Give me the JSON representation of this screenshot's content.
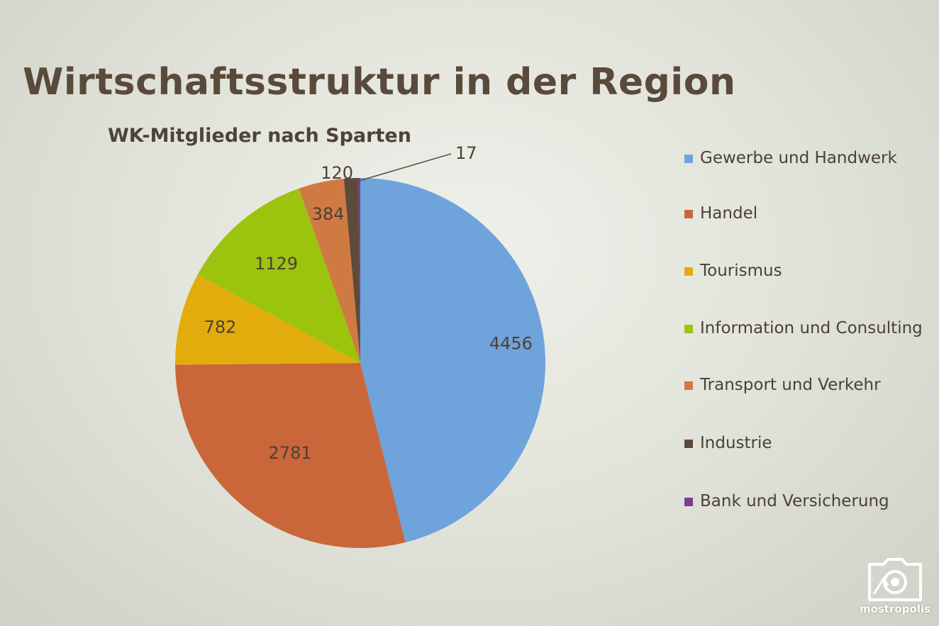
{
  "slide": {
    "title": "Wirtschaftsstruktur in der Region"
  },
  "chart_data": {
    "type": "pie",
    "title": "WK-Mitglieder nach Sparten",
    "legend_position": "right",
    "slices": [
      {
        "label": "Gewerbe und Handwerk",
        "value": 4456,
        "color": "#6fa3dc"
      },
      {
        "label": "Handel",
        "value": 2781,
        "color": "#c9673a"
      },
      {
        "label": "Tourismus",
        "value": 782,
        "color": "#e2ad0c"
      },
      {
        "label": "Information und Consulting",
        "value": 1129,
        "color": "#9cc30e"
      },
      {
        "label": "Transport und Verkehr",
        "value": 384,
        "color": "#d07a43"
      },
      {
        "label": "Industrie",
        "value": 120,
        "color": "#5d4b3a"
      },
      {
        "label": "Bank und Versicherung",
        "value": 17,
        "color": "#7a3d8f"
      }
    ]
  },
  "watermark": {
    "text": "mostropolis",
    "icon": "camera-icon"
  }
}
